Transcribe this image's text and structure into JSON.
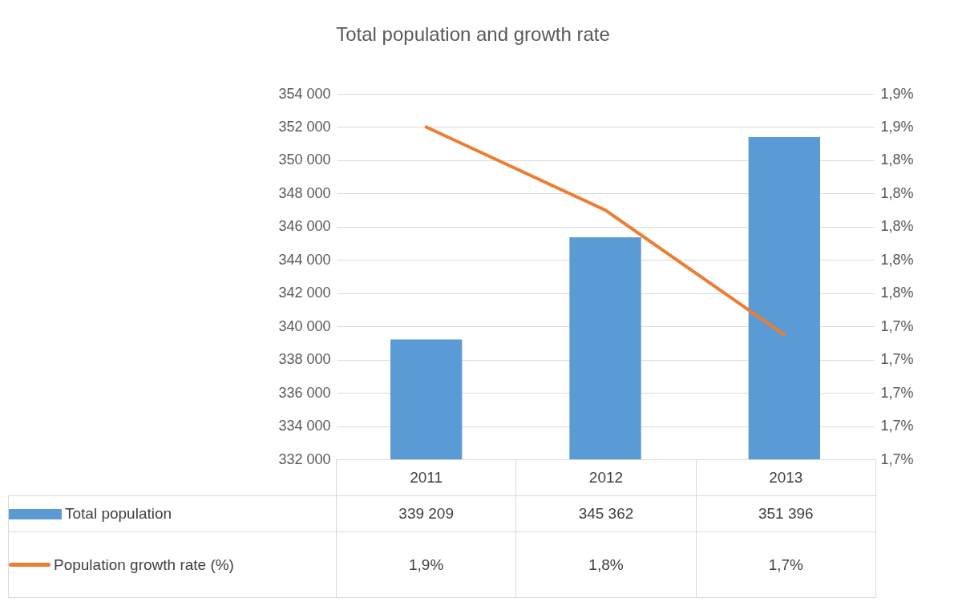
{
  "chart_data": {
    "type": "bar",
    "title": "Total population and growth rate",
    "categories": [
      "2011",
      "2012",
      "2013"
    ],
    "series": [
      {
        "name": "Total population",
        "color": "#5b9bd5",
        "values": [
          339209,
          345362,
          351396
        ],
        "value_labels": [
          "339 209",
          "345 362",
          "351 396"
        ]
      },
      {
        "name": "Population growth rate (%)",
        "type": "line",
        "axis": "y2",
        "color": "#ed7d31",
        "values": [
          1.86,
          1.81,
          1.735
        ],
        "value_labels": [
          "1,9%",
          "1,8%",
          "1,7%"
        ]
      }
    ],
    "ylim": [
      332000,
      354000
    ],
    "yticks": [
      {
        "value": 332000,
        "label": "332 000"
      },
      {
        "value": 334000,
        "label": "334 000"
      },
      {
        "value": 336000,
        "label": "336 000"
      },
      {
        "value": 338000,
        "label": "338 000"
      },
      {
        "value": 340000,
        "label": "340 000"
      },
      {
        "value": 342000,
        "label": "342 000"
      },
      {
        "value": 344000,
        "label": "344 000"
      },
      {
        "value": 346000,
        "label": "346 000"
      },
      {
        "value": 348000,
        "label": "348 000"
      },
      {
        "value": 350000,
        "label": "350 000"
      },
      {
        "value": 352000,
        "label": "352 000"
      },
      {
        "value": 354000,
        "label": "354 000"
      }
    ],
    "y2lim": [
      1.66,
      1.88
    ],
    "y2ticks": [
      {
        "value": 1.66,
        "label": "1,7%"
      },
      {
        "value": 1.68,
        "label": "1,7%"
      },
      {
        "value": 1.7,
        "label": "1,7%"
      },
      {
        "value": 1.72,
        "label": "1,7%"
      },
      {
        "value": 1.74,
        "label": "1,7%"
      },
      {
        "value": 1.76,
        "label": "1,8%"
      },
      {
        "value": 1.78,
        "label": "1,8%"
      },
      {
        "value": 1.8,
        "label": "1,8%"
      },
      {
        "value": 1.82,
        "label": "1,8%"
      },
      {
        "value": 1.84,
        "label": "1,8%"
      },
      {
        "value": 1.86,
        "label": "1,9%"
      },
      {
        "value": 1.88,
        "label": "1,9%"
      }
    ],
    "grid": "y",
    "legend": "bottom",
    "marker": "none",
    "line_style": "solid"
  }
}
